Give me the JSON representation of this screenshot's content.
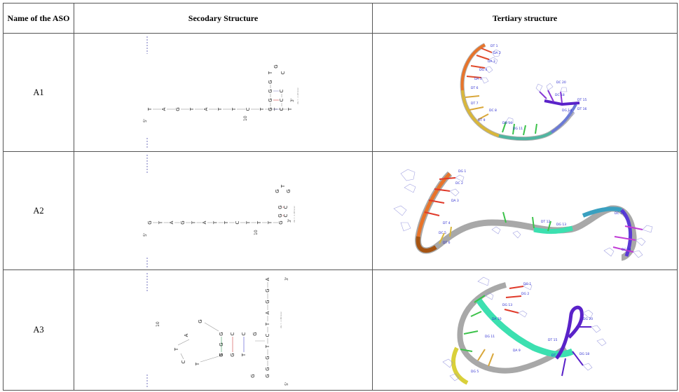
{
  "table": {
    "headers": [
      "Name of the ASO",
      "Secodary Structure",
      "Tertiary structure"
    ],
    "rows": [
      {
        "name": "A1",
        "secondary": {
          "end5": "5'",
          "end3": "3'",
          "tick": "10",
          "stem_bases": [
            "T",
            "A",
            "G",
            "T",
            "A",
            "T",
            "T",
            "C",
            "T",
            "T",
            "T"
          ],
          "hairpin_left": [
            "G",
            "G",
            "G",
            "G"
          ],
          "hairpin_right": [
            "C",
            "C",
            "C"
          ],
          "loop": [
            "T",
            "G"
          ],
          "side_note": "dG = -1.20 kcal"
        },
        "tertiary": {
          "labels": [
            "DT 1",
            "DA 2",
            "DA 3",
            "DG 4",
            "DA 5",
            "DT 6",
            "DT 7",
            "DC 8",
            "DT 9",
            "DG 10",
            "DG 11",
            "DG 14",
            "DT 15",
            "DT 16",
            "DC 18",
            "DC 20"
          ]
        }
      },
      {
        "name": "A2",
        "secondary": {
          "end5": "5'",
          "end3": "3'",
          "tick": "10",
          "stem_bases": [
            "G",
            "T",
            "A",
            "G",
            "T",
            "A",
            "T",
            "T",
            "C",
            "T",
            "T",
            "T",
            "G"
          ],
          "hairpin_left": [
            "G",
            "G"
          ],
          "hairpin_right": [
            "C",
            "C"
          ],
          "loop": [
            "G",
            "T",
            "G"
          ],
          "side_note": "dG = -1.00 kcal"
        },
        "tertiary": {
          "labels": [
            "DG 1",
            "DC 2",
            "DA 3",
            "DT 4",
            "DC 5",
            "DT 6",
            "DG 13",
            "DT 12",
            "DC 16",
            "DC 24"
          ]
        }
      },
      {
        "name": "A3",
        "secondary": {
          "end5": "5'",
          "end3": "3'",
          "tick": "10",
          "right_col": [
            "A",
            "G",
            "G",
            "A",
            "T",
            "C",
            "T",
            "G",
            "G"
          ],
          "stem_left": [
            "G",
            "G",
            "T"
          ],
          "stem_right": [
            "C",
            "C",
            "G"
          ],
          "loop": [
            "G",
            "A",
            "T",
            "C",
            "T"
          ],
          "side_note": "dG = -1.80 kcal"
        },
        "tertiary": {
          "labels": [
            "DG 1",
            "DG 2",
            "DG 13",
            "DA 10",
            "DG 11",
            "DA 9",
            "DT 15",
            "DT 16",
            "DG 18",
            "DG 20",
            "DG 5"
          ]
        }
      }
    ]
  },
  "colors": {
    "border": "#555555",
    "bond": "#8a8ac8",
    "backbone": "#9a9a9a"
  }
}
